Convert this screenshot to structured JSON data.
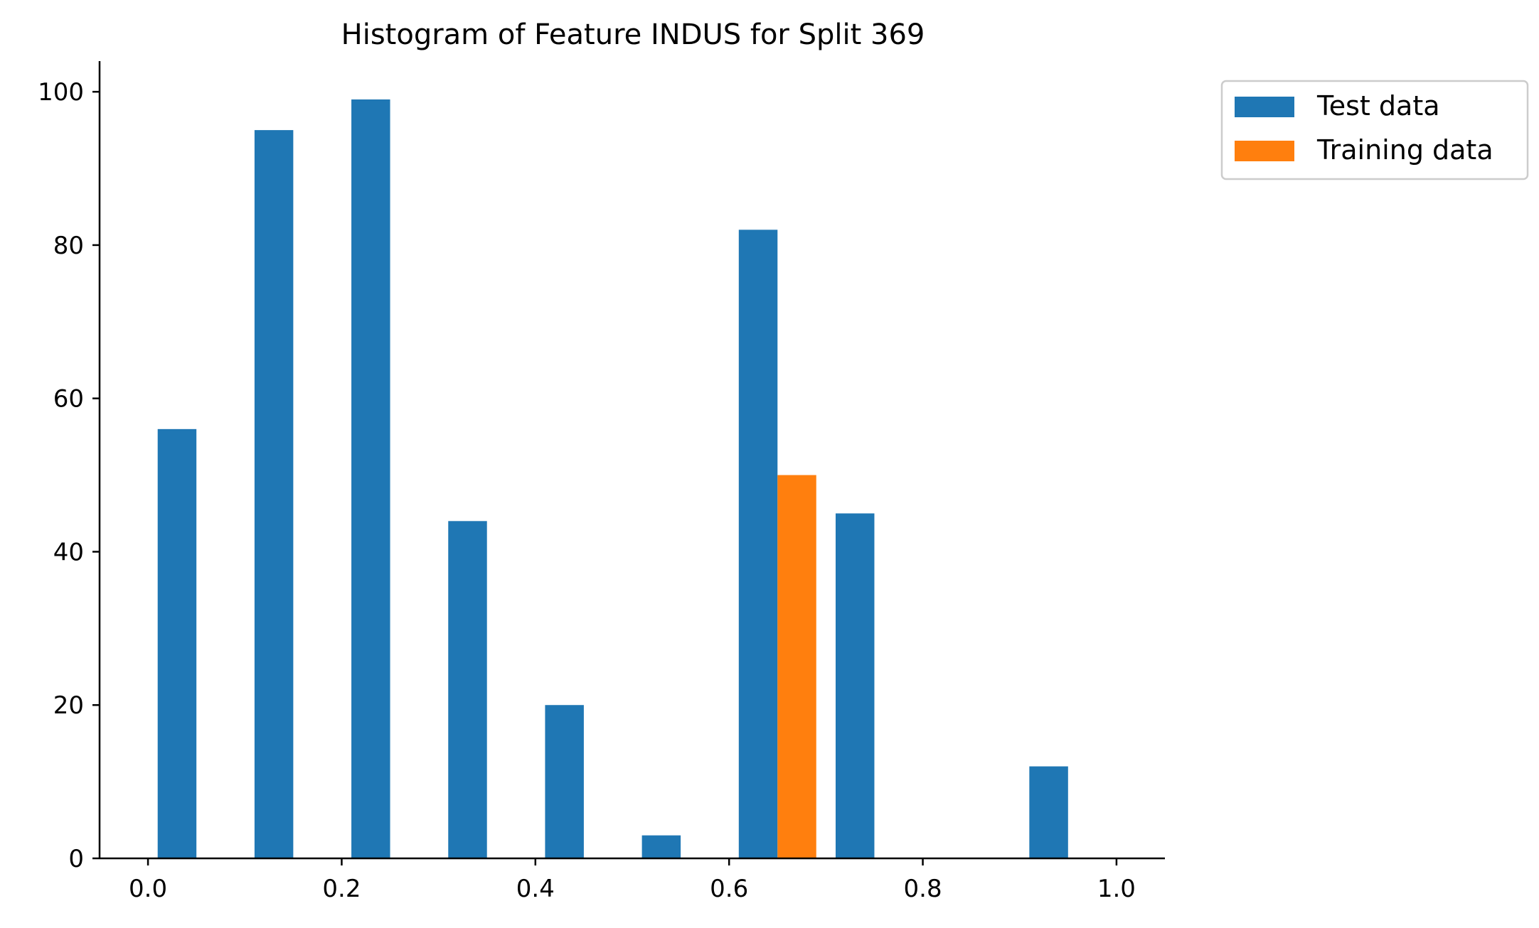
{
  "chart_data": {
    "type": "bar",
    "title": "Histogram of Feature INDUS for Split 369",
    "xlabel": "",
    "ylabel": "",
    "xlim": [
      -0.05,
      1.05
    ],
    "ylim": [
      0,
      104
    ],
    "xticks": [
      0.0,
      0.2,
      0.4,
      0.6,
      0.8,
      1.0
    ],
    "xtick_labels": [
      "0.0",
      "0.2",
      "0.4",
      "0.6",
      "0.8",
      "1.0"
    ],
    "yticks": [
      0,
      20,
      40,
      60,
      80,
      100
    ],
    "ytick_labels": [
      "0",
      "20",
      "40",
      "60",
      "80",
      "100"
    ],
    "bin_edges": [
      0.0,
      0.1,
      0.2,
      0.3,
      0.4,
      0.5,
      0.6,
      0.7,
      0.8,
      0.9,
      1.0
    ],
    "grid": false,
    "legend_position": "outside top-right",
    "series": [
      {
        "name": "Test data",
        "color": "#1f77b4",
        "values": [
          56,
          95,
          99,
          44,
          20,
          3,
          82,
          45,
          0,
          12
        ]
      },
      {
        "name": "Training data",
        "color": "#ff7f0e",
        "values": [
          0,
          0,
          0,
          0,
          0,
          0,
          50,
          0,
          0,
          0
        ]
      }
    ]
  }
}
